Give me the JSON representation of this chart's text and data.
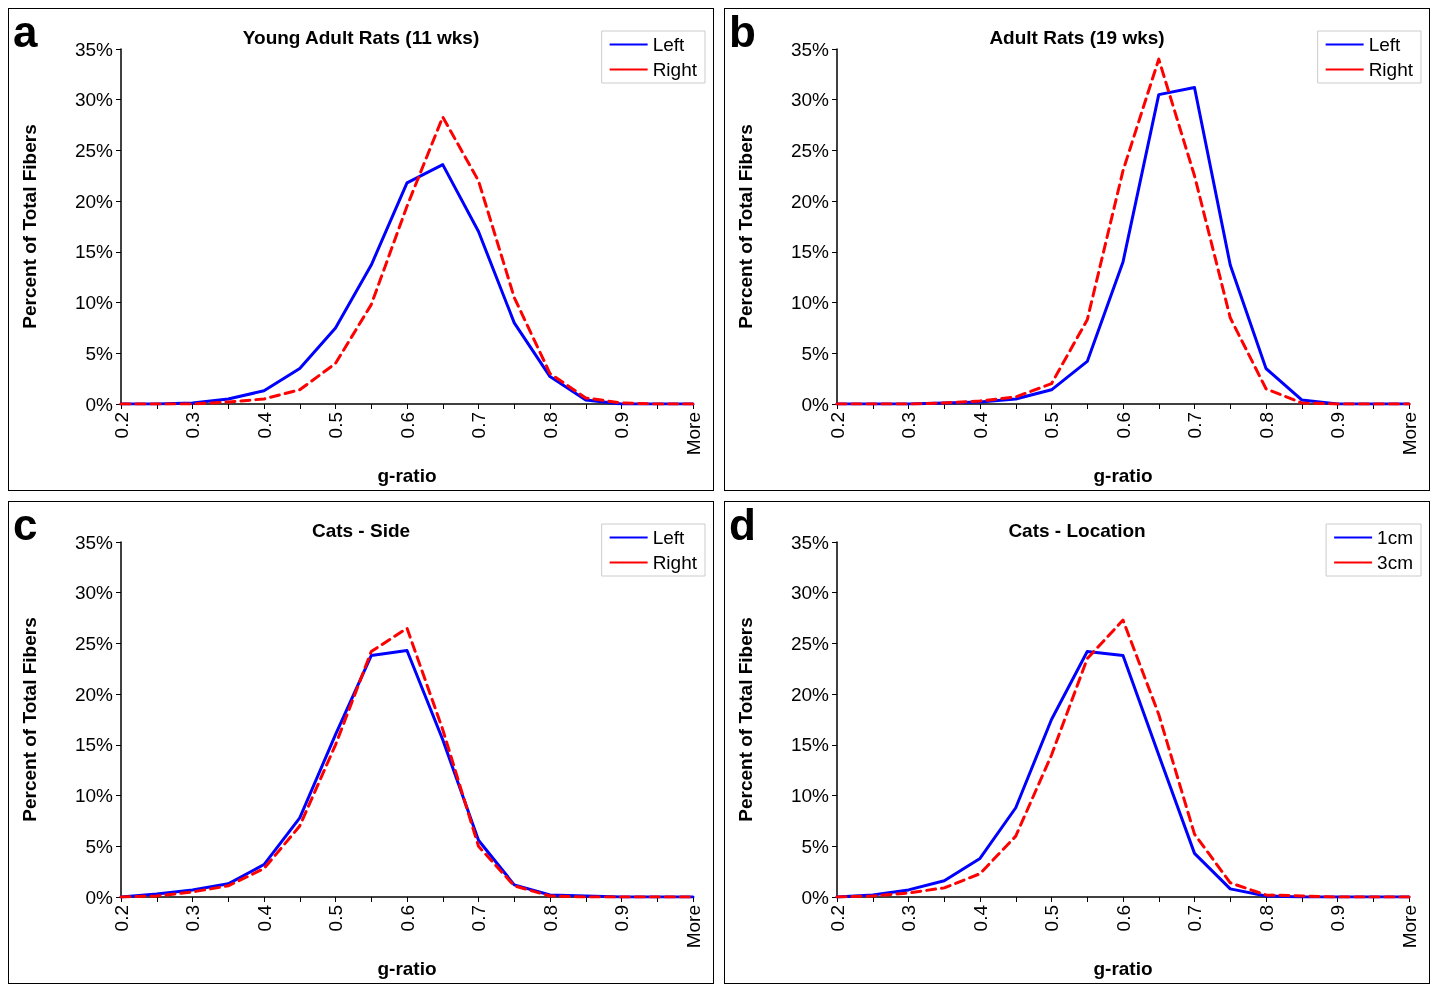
{
  "chart_data": [
    {
      "type": "line",
      "title": "Young Adult Rats (11 wks)",
      "xlabel": "g-ratio",
      "ylabel": "Percent of Total Fibers",
      "annotations": [
        "a"
      ],
      "categories": [
        "0.2",
        null,
        "0.3",
        null,
        "0.4",
        null,
        "0.5",
        null,
        "0.6",
        null,
        "0.7",
        null,
        "0.8",
        null,
        "0.9",
        null,
        "More"
      ],
      "ylim": [
        0,
        35
      ],
      "yticks": [
        {
          "value": 0,
          "label": "0%"
        },
        {
          "value": 5,
          "label": "5%"
        },
        {
          "value": 10,
          "label": "10%"
        },
        {
          "value": 15,
          "label": "15%"
        },
        {
          "value": 20,
          "label": "20%"
        },
        {
          "value": 25,
          "label": "25%"
        },
        {
          "value": 30,
          "label": "30%"
        },
        {
          "value": 35,
          "label": "35%"
        }
      ],
      "grid": false,
      "legend": "top right",
      "marker": "none",
      "series": [
        {
          "name": "Left",
          "color": "#0000ff",
          "line_style": "solid",
          "values": [
            0,
            0,
            0.1,
            0.5,
            1.3,
            3.5,
            7.5,
            13.7,
            21.8,
            23.6,
            17,
            8,
            2.7,
            0.4,
            0,
            0,
            0
          ]
        },
        {
          "name": "Right",
          "color": "#ff0000",
          "line_style": "dashed",
          "values": [
            0,
            0,
            0,
            0.2,
            0.5,
            1.4,
            4,
            9.8,
            19.5,
            28.3,
            22,
            10.5,
            3,
            0.6,
            0.1,
            0,
            0
          ]
        }
      ]
    },
    {
      "type": "line",
      "title": "Adult Rats (19 wks)",
      "xlabel": "g-ratio",
      "ylabel": "Percent of Total Fibers",
      "annotations": [
        "b"
      ],
      "categories": [
        "0.2",
        null,
        "0.3",
        null,
        "0.4",
        null,
        "0.5",
        null,
        "0.6",
        null,
        "0.7",
        null,
        "0.8",
        null,
        "0.9",
        null,
        "More"
      ],
      "ylim": [
        0,
        35
      ],
      "yticks": [
        {
          "value": 0,
          "label": "0%"
        },
        {
          "value": 5,
          "label": "5%"
        },
        {
          "value": 10,
          "label": "10%"
        },
        {
          "value": 15,
          "label": "15%"
        },
        {
          "value": 20,
          "label": "20%"
        },
        {
          "value": 25,
          "label": "25%"
        },
        {
          "value": 30,
          "label": "30%"
        },
        {
          "value": 35,
          "label": "35%"
        }
      ],
      "grid": false,
      "legend": "top right",
      "marker": "none",
      "series": [
        {
          "name": "Left",
          "color": "#0000ff",
          "line_style": "solid",
          "values": [
            0,
            0,
            0,
            0.1,
            0.2,
            0.5,
            1.4,
            4.2,
            14,
            30.5,
            31.2,
            13.7,
            3.5,
            0.4,
            0,
            0,
            0
          ]
        },
        {
          "name": "Right",
          "color": "#ff0000",
          "line_style": "dashed",
          "values": [
            0,
            0,
            0,
            0.1,
            0.3,
            0.7,
            2,
            8.3,
            23,
            34,
            22.5,
            8.5,
            1.5,
            0.1,
            0,
            0,
            0
          ]
        }
      ]
    },
    {
      "type": "line",
      "title": "Cats - Side",
      "xlabel": "g-ratio",
      "ylabel": "Percent of Total Fibers",
      "annotations": [
        "c"
      ],
      "categories": [
        "0.2",
        null,
        "0.3",
        null,
        "0.4",
        null,
        "0.5",
        null,
        "0.6",
        null,
        "0.7",
        null,
        "0.8",
        null,
        "0.9",
        null,
        "More"
      ],
      "ylim": [
        0,
        35
      ],
      "yticks": [
        {
          "value": 0,
          "label": "0%"
        },
        {
          "value": 5,
          "label": "5%"
        },
        {
          "value": 10,
          "label": "10%"
        },
        {
          "value": 15,
          "label": "15%"
        },
        {
          "value": 20,
          "label": "20%"
        },
        {
          "value": 25,
          "label": "25%"
        },
        {
          "value": 30,
          "label": "30%"
        },
        {
          "value": 35,
          "label": "35%"
        }
      ],
      "grid": false,
      "legend": "top right",
      "marker": "none",
      "series": [
        {
          "name": "Left",
          "color": "#0000ff",
          "line_style": "solid",
          "values": [
            0,
            0.3,
            0.7,
            1.3,
            3.2,
            7.8,
            16,
            23.8,
            24.3,
            15.5,
            5.6,
            1.2,
            0.2,
            0.1,
            0,
            0,
            0
          ]
        },
        {
          "name": "Right",
          "color": "#ff0000",
          "line_style": "dashed",
          "values": [
            0,
            0.1,
            0.5,
            1.1,
            2.8,
            7,
            15,
            24.2,
            26.5,
            16.5,
            5,
            1.1,
            0.1,
            0,
            0,
            0,
            0
          ]
        }
      ]
    },
    {
      "type": "line",
      "title": "Cats - Location",
      "xlabel": "g-ratio",
      "ylabel": "Percent of Total Fibers",
      "annotations": [
        "d"
      ],
      "categories": [
        "0.2",
        null,
        "0.3",
        null,
        "0.4",
        null,
        "0.5",
        null,
        "0.6",
        null,
        "0.7",
        null,
        "0.8",
        null,
        "0.9",
        null,
        "More"
      ],
      "ylim": [
        0,
        35
      ],
      "yticks": [
        {
          "value": 0,
          "label": "0%"
        },
        {
          "value": 5,
          "label": "5%"
        },
        {
          "value": 10,
          "label": "10%"
        },
        {
          "value": 15,
          "label": "15%"
        },
        {
          "value": 20,
          "label": "20%"
        },
        {
          "value": 25,
          "label": "25%"
        },
        {
          "value": 30,
          "label": "30%"
        },
        {
          "value": 35,
          "label": "35%"
        }
      ],
      "grid": false,
      "legend": "top right",
      "marker": "none",
      "series": [
        {
          "name": "1cm",
          "color": "#0000ff",
          "line_style": "solid",
          "values": [
            0,
            0.2,
            0.7,
            1.6,
            3.8,
            8.8,
            17.5,
            24.2,
            23.8,
            14,
            4.3,
            0.8,
            0.1,
            0,
            0,
            0,
            0
          ]
        },
        {
          "name": "3cm",
          "color": "#ff0000",
          "line_style": "dashed",
          "values": [
            0,
            0.1,
            0.4,
            0.9,
            2.3,
            6,
            14,
            23.5,
            27.3,
            18,
            6.2,
            1.4,
            0.2,
            0.1,
            0,
            0,
            0
          ]
        }
      ]
    }
  ]
}
